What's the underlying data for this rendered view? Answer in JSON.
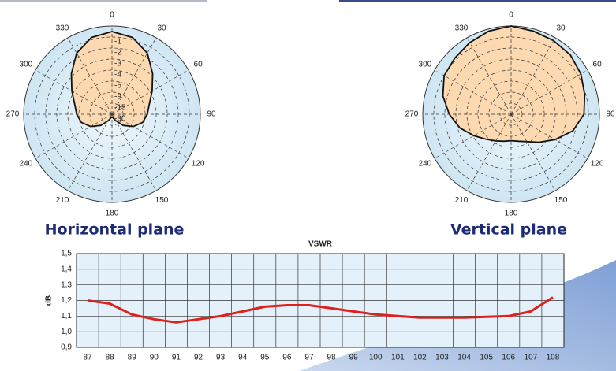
{
  "chart_data": [
    {
      "type": "polar",
      "title": "Horizontal plane",
      "angles": [
        0,
        15,
        30,
        45,
        60,
        75,
        90,
        105,
        120,
        135,
        150,
        165,
        180,
        195,
        210,
        225,
        240,
        255,
        270,
        285,
        300,
        315,
        330,
        345
      ],
      "values": [
        -0.5,
        -0.8,
        -1.6,
        -2.8,
        -3.8,
        -5,
        -5.6,
        -6.4,
        -8.3,
        -12.4,
        -20,
        -25,
        -26,
        -25,
        -20,
        -12.4,
        -8.3,
        -6.4,
        -5.6,
        -5,
        -3.8,
        -2.8,
        -1.6,
        -0.8
      ],
      "thetaticks": [
        0,
        30,
        60,
        90,
        120,
        150,
        180,
        210,
        240,
        270,
        300,
        330
      ],
      "rlim": [
        -30,
        0
      ],
      "rticks": [
        -1,
        -2,
        -3,
        -4,
        -6,
        -9,
        -15,
        -30
      ],
      "ring_labels": true,
      "color": "#fcd9b0"
    },
    {
      "type": "polar",
      "title": "Vertical plane",
      "angles": [
        0,
        15,
        30,
        45,
        60,
        75,
        90,
        105,
        120,
        135,
        150,
        165,
        180,
        195,
        210,
        225,
        240,
        255,
        270,
        285,
        300,
        315,
        330,
        345
      ],
      "values": [
        0,
        -0.2,
        -0.3,
        -0.4,
        -0.7,
        -1.1,
        -1.4,
        -2.2,
        -3.4,
        -4.8,
        -6.4,
        -7.4,
        -7.8,
        -7.4,
        -6.6,
        -5.6,
        -4.2,
        -3.2,
        -2.4,
        -1.6,
        -1,
        -0.8,
        -0.5,
        -0.2
      ],
      "thetaticks": [
        0,
        30,
        60,
        90,
        120,
        150,
        180,
        210,
        240,
        270,
        300,
        330
      ],
      "rlim": [
        -30,
        0
      ],
      "rticks": [
        -1,
        -2,
        -3,
        -4,
        -6,
        -9,
        -15,
        -30
      ],
      "ring_labels": false,
      "color": "#fcd9b0"
    },
    {
      "type": "line",
      "title": "VSWR",
      "ylabel": "dB",
      "categories": [
        "87",
        "88",
        "89",
        "90",
        "91",
        "92",
        "93",
        "94",
        "95",
        "96",
        "97",
        "98",
        "99",
        "100",
        "101",
        "102",
        "103",
        "104",
        "105",
        "106",
        "107",
        "108"
      ],
      "values": [
        1.2,
        1.18,
        1.11,
        1.08,
        1.06,
        1.08,
        1.1,
        1.13,
        1.16,
        1.17,
        1.17,
        1.15,
        1.13,
        1.11,
        1.1,
        1.09,
        1.09,
        1.09,
        1.095,
        1.1,
        1.13,
        1.22
      ],
      "ylim": [
        0.9,
        1.5
      ],
      "yticks": [
        {
          "value": 0.9,
          "label": "0,9"
        },
        {
          "value": 1.0,
          "label": "1,0"
        },
        {
          "value": 1.1,
          "label": "1,1"
        },
        {
          "value": 1.2,
          "label": "1,2"
        },
        {
          "value": 1.3,
          "label": "1,3"
        },
        {
          "value": 1.4,
          "label": "1,4"
        },
        {
          "value": 1.5,
          "label": "1,5"
        }
      ],
      "grid": true,
      "color": "#e0201b"
    }
  ]
}
